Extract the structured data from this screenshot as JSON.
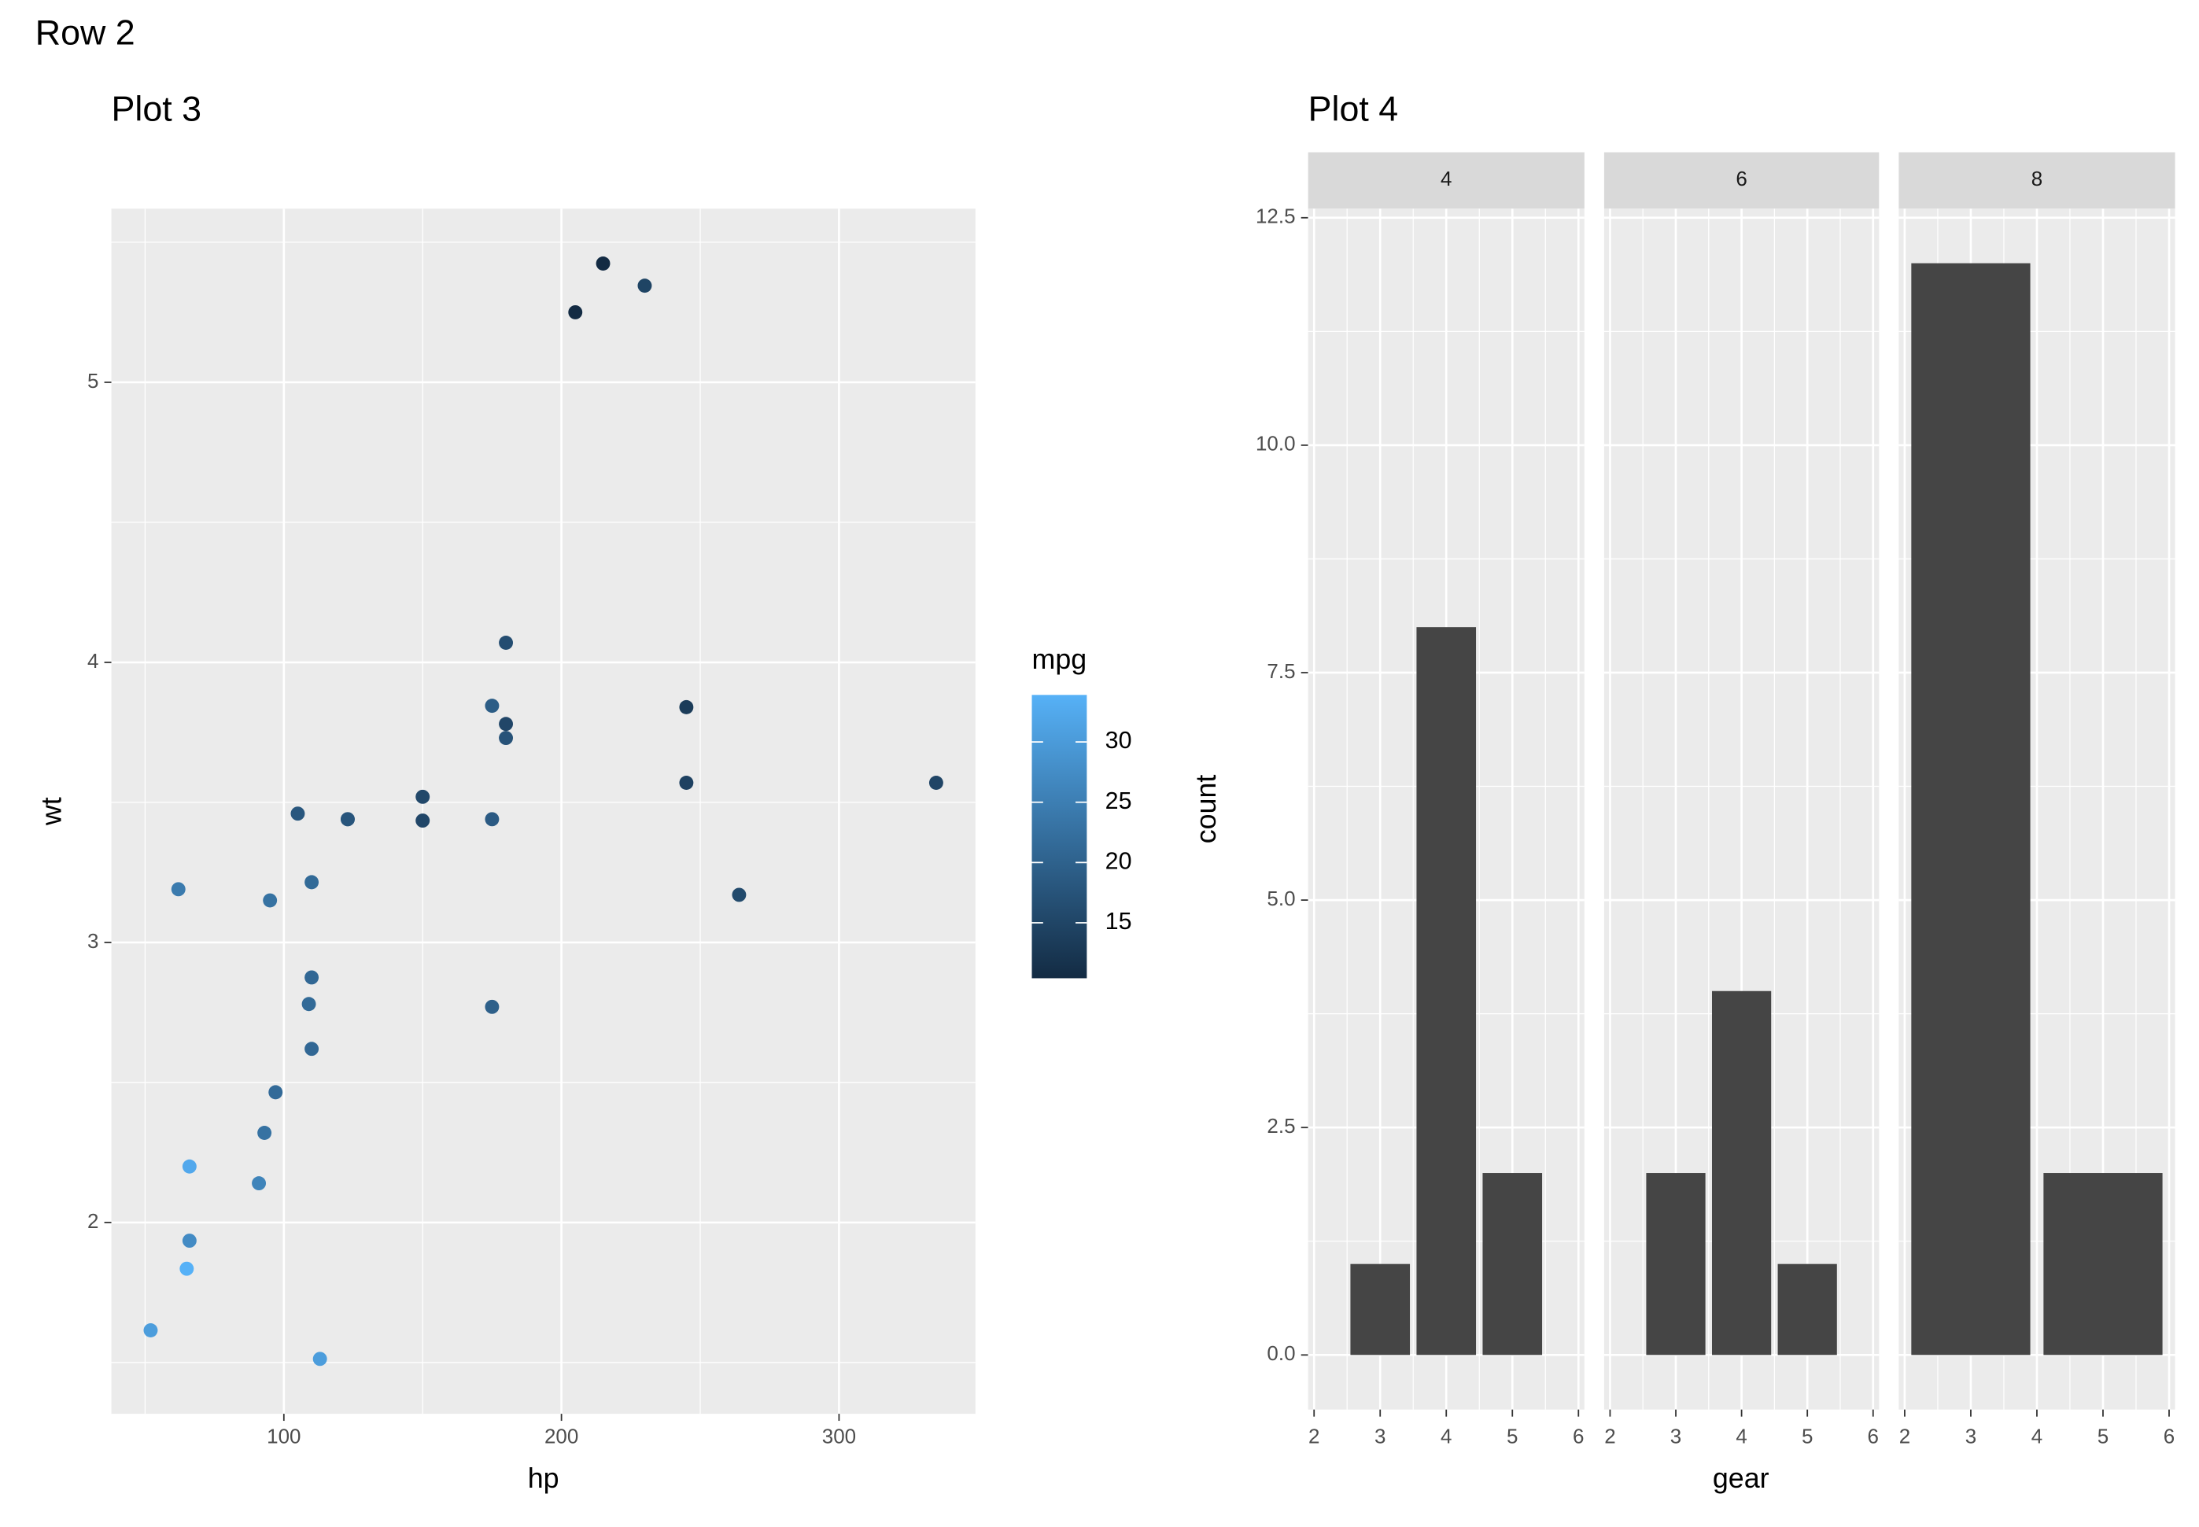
{
  "title": "Row 2",
  "chart_data": [
    {
      "type": "scatter",
      "title": "Plot 3",
      "x_label": "hp",
      "y_label": "wt",
      "x": [
        110,
        110,
        93,
        110,
        175,
        105,
        245,
        62,
        95,
        123,
        123,
        180,
        180,
        180,
        205,
        215,
        230,
        66,
        52,
        65,
        97,
        150,
        150,
        245,
        175,
        66,
        91,
        113,
        264,
        175,
        335,
        109
      ],
      "values": [
        2.62,
        2.875,
        2.32,
        3.215,
        3.44,
        3.46,
        3.57,
        3.19,
        3.15,
        3.44,
        3.44,
        4.07,
        3.73,
        3.78,
        5.25,
        5.424,
        5.345,
        2.2,
        1.615,
        1.835,
        2.465,
        3.52,
        3.435,
        3.84,
        3.845,
        1.935,
        2.14,
        1.513,
        3.17,
        2.77,
        3.57,
        2.78
      ],
      "color_values": [
        21.0,
        21.0,
        22.8,
        21.4,
        18.7,
        18.1,
        14.3,
        24.4,
        22.8,
        19.2,
        17.8,
        16.4,
        17.3,
        15.2,
        10.4,
        10.4,
        14.7,
        32.4,
        30.4,
        33.9,
        21.5,
        15.5,
        15.2,
        13.3,
        19.2,
        27.3,
        26.0,
        30.4,
        15.8,
        19.7,
        15.0,
        21.4
      ],
      "legend_title": "mpg",
      "color_low": "#132b43",
      "color_high": "#56b1f7",
      "color_lim": [
        10.4,
        33.9
      ],
      "color_ticks": [
        15,
        20,
        25,
        30
      ],
      "xlim": [
        37.85,
        349.15
      ],
      "xticks": [
        100,
        200,
        300
      ],
      "xminor": [
        50,
        150,
        250
      ],
      "ylim": [
        1.317,
        5.62
      ],
      "yticks": [
        2,
        3,
        4,
        5
      ],
      "yminor": [
        1.5,
        2.5,
        3.5,
        4.5,
        5.5
      ],
      "grid": true
    },
    {
      "type": "bar",
      "title": "Plot 4",
      "x_label": "gear",
      "y_label": "count",
      "color": "#454545",
      "facets": [
        {
          "label": "4",
          "categories": [
            3,
            4,
            5
          ],
          "values": [
            1,
            8,
            2
          ]
        },
        {
          "label": "6",
          "categories": [
            3,
            4,
            5
          ],
          "values": [
            2,
            4,
            1
          ]
        },
        {
          "label": "8",
          "categories": [
            3,
            5
          ],
          "values": [
            12,
            2
          ]
        }
      ],
      "xlim": [
        1.91,
        6.09
      ],
      "xticks": [
        2,
        3,
        4,
        5,
        6
      ],
      "xminor": [
        2.5,
        3.5,
        4.5,
        5.5
      ],
      "ylim": [
        -0.6,
        12.6
      ],
      "yticks": [
        {
          "value": 0,
          "label": "0.0"
        },
        2.5,
        {
          "value": 5,
          "label": "5.0"
        },
        7.5,
        {
          "value": 10,
          "label": "10.0"
        },
        12.5
      ],
      "yminor": [
        1.25,
        3.75,
        6.25,
        8.75,
        11.25
      ],
      "grid": true
    }
  ]
}
